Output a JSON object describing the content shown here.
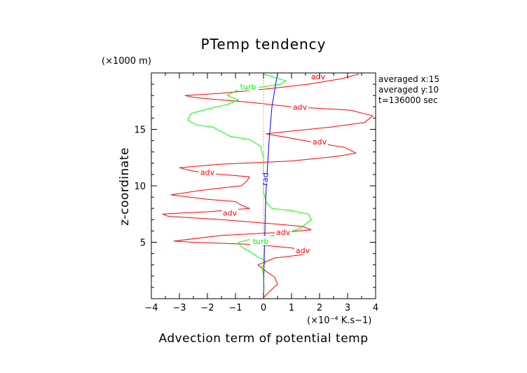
{
  "chart_data": {
    "type": "line",
    "title": "PTemp tendency",
    "xlabel": "Advection term of potential temp",
    "ylabel": "z-coordinate",
    "y_unit": "(×1000 m)",
    "x_unit": "(×10⁻⁴ K.s−1)",
    "xlim": [
      -4,
      4
    ],
    "ylim": [
      0,
      20
    ],
    "x_ticks": [
      "−4",
      "−3",
      "−2",
      "−1",
      "0",
      "1",
      "2",
      "3",
      "4"
    ],
    "x_tick_values": [
      -4,
      -3,
      -2,
      -1,
      0,
      1,
      2,
      3,
      4
    ],
    "y_ticks": [
      "5",
      "10",
      "15"
    ],
    "y_tick_values": [
      5,
      10,
      15
    ],
    "info": [
      "averaged  x:15",
      "averaged  y:10",
      "t=136000 sec"
    ],
    "grid": false,
    "series": [
      {
        "name": "adv",
        "color": "#ff0000",
        "points": [
          [
            0,
            0.1
          ],
          [
            0.2,
            0.6
          ],
          [
            0.5,
            1.3
          ],
          [
            0.4,
            1.9
          ],
          [
            0.05,
            2.5
          ],
          [
            -0.2,
            3.0
          ],
          [
            0.4,
            3.6
          ],
          [
            1.4,
            3.9
          ],
          [
            1.6,
            4.2
          ],
          [
            1.0,
            4.5
          ],
          [
            -0.3,
            4.8
          ],
          [
            -2.5,
            5.0
          ],
          [
            -3.2,
            5.1
          ],
          [
            -1.5,
            5.6
          ],
          [
            0.8,
            5.9
          ],
          [
            1.7,
            6.1
          ],
          [
            1.4,
            6.4
          ],
          [
            0.5,
            6.6
          ],
          [
            -1.5,
            7.0
          ],
          [
            -3.4,
            7.3
          ],
          [
            -3.6,
            7.5
          ],
          [
            -2.0,
            7.7
          ],
          [
            -0.5,
            8.0
          ],
          [
            -0.8,
            8.3
          ],
          [
            -1.0,
            8.6
          ],
          [
            -2.0,
            8.8
          ],
          [
            -3.3,
            9.2
          ],
          [
            -2.2,
            9.6
          ],
          [
            -0.8,
            10.0
          ],
          [
            -0.6,
            10.4
          ],
          [
            -0.5,
            10.8
          ],
          [
            -1.5,
            11.0
          ],
          [
            -2.5,
            11.3
          ],
          [
            -3.0,
            11.6
          ],
          [
            -1.6,
            11.9
          ],
          [
            1.0,
            12.2
          ],
          [
            2.6,
            12.6
          ],
          [
            3.3,
            12.9
          ],
          [
            2.9,
            13.4
          ],
          [
            1.9,
            13.8
          ],
          [
            0.8,
            14.3
          ],
          [
            0.1,
            14.6
          ],
          [
            0.8,
            14.8
          ],
          [
            2.4,
            15.2
          ],
          [
            3.6,
            15.6
          ],
          [
            3.9,
            16.2
          ],
          [
            3.1,
            16.7
          ],
          [
            1.0,
            17.0
          ],
          [
            -0.5,
            17.4
          ],
          [
            -2.4,
            17.8
          ],
          [
            -2.8,
            18.0
          ],
          [
            -1.5,
            18.2
          ],
          [
            0.2,
            18.6
          ],
          [
            1.6,
            19.0
          ],
          [
            2.8,
            19.5
          ],
          [
            3.4,
            19.9
          ]
        ]
      },
      {
        "name": "turb",
        "color": "#00ff00",
        "points": [
          [
            0,
            0.1
          ],
          [
            0.02,
            1.0
          ],
          [
            0,
            2.0
          ],
          [
            -0.05,
            2.8
          ],
          [
            0.1,
            3.3
          ],
          [
            -0.2,
            3.7
          ],
          [
            -0.5,
            4.2
          ],
          [
            -0.8,
            4.6
          ],
          [
            -0.9,
            5.0
          ],
          [
            -0.4,
            5.3
          ],
          [
            0.2,
            5.5
          ],
          [
            0.8,
            5.8
          ],
          [
            1.3,
            6.2
          ],
          [
            1.5,
            6.6
          ],
          [
            1.7,
            7.0
          ],
          [
            1.6,
            7.5
          ],
          [
            1.0,
            7.8
          ],
          [
            0.3,
            8.0
          ],
          [
            0.1,
            8.5
          ],
          [
            0,
            9.5
          ],
          [
            0,
            11.0
          ],
          [
            0,
            12.5
          ],
          [
            -0.1,
            13.5
          ],
          [
            -0.5,
            14.1
          ],
          [
            -1.2,
            14.4
          ],
          [
            -1.5,
            14.8
          ],
          [
            -1.8,
            15.2
          ],
          [
            -2.4,
            15.4
          ],
          [
            -2.7,
            15.8
          ],
          [
            -2.6,
            16.4
          ],
          [
            -2.0,
            16.8
          ],
          [
            -1.3,
            17.2
          ],
          [
            -0.9,
            17.6
          ],
          [
            -1.3,
            18.0
          ],
          [
            -1.0,
            18.4
          ],
          [
            -0.2,
            18.7
          ],
          [
            0.6,
            19.0
          ],
          [
            0.8,
            19.3
          ],
          [
            0.4,
            19.6
          ],
          [
            0,
            19.9
          ]
        ]
      },
      {
        "name": "rad",
        "color": "#0000ff",
        "points": [
          [
            0,
            0.1
          ],
          [
            0.02,
            3.0
          ],
          [
            0.05,
            6.0
          ],
          [
            0.08,
            9.0
          ],
          [
            0.15,
            12.0
          ],
          [
            0.2,
            14.0
          ],
          [
            0.3,
            17.0
          ],
          [
            0.45,
            19.2
          ],
          [
            0.5,
            19.9
          ]
        ]
      },
      {
        "name": "",
        "color": "#ff9900",
        "points": [
          [
            0,
            0.1
          ],
          [
            0,
            19.9
          ]
        ]
      }
    ],
    "labels": [
      {
        "text": "adv",
        "x": 1.95,
        "y": 19.7,
        "series": "adv"
      },
      {
        "text": "adv",
        "x": 1.3,
        "y": 17.0,
        "series": "adv"
      },
      {
        "text": "adv",
        "x": 2.0,
        "y": 13.9,
        "series": "adv"
      },
      {
        "text": "adv",
        "x": -2.0,
        "y": 11.2,
        "series": "adv"
      },
      {
        "text": "adv",
        "x": -1.2,
        "y": 7.6,
        "series": "adv"
      },
      {
        "text": "adv",
        "x": 0.7,
        "y": 5.9,
        "series": "adv"
      },
      {
        "text": "adv",
        "x": 1.4,
        "y": 4.3,
        "series": "adv"
      },
      {
        "text": "turb",
        "x": -0.55,
        "y": 18.8,
        "series": "turb"
      },
      {
        "text": "turb",
        "x": -0.1,
        "y": 5.1,
        "series": "turb"
      },
      {
        "text": "rad",
        "x": 0.05,
        "y": 10.6,
        "series": "rad"
      }
    ]
  }
}
